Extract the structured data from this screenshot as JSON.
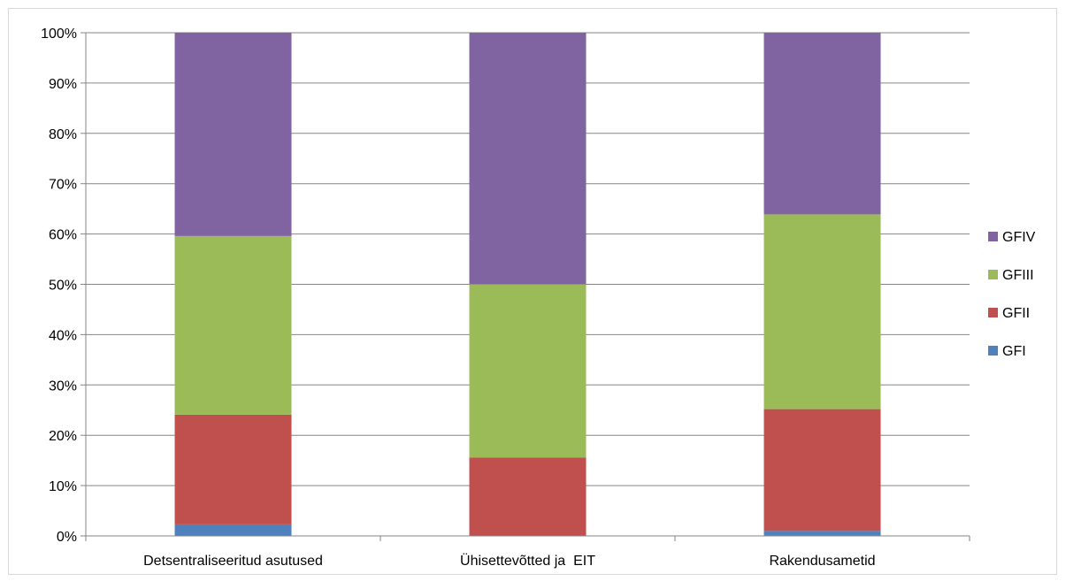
{
  "chart_data": {
    "type": "bar",
    "stacked": true,
    "percent": true,
    "categories": [
      "Detsentraliseeritud asutused",
      "Ühisettevõtted ja  EIT",
      "Rakendusametid"
    ],
    "series": [
      {
        "name": "GFI",
        "color": "#4f81bd",
        "values": [
          2.3,
          0,
          1.0
        ]
      },
      {
        "name": "GFII",
        "color": "#c0504d",
        "values": [
          21.8,
          15.6,
          24.2
        ]
      },
      {
        "name": "GFIII",
        "color": "#9bbb59",
        "values": [
          35.5,
          34.4,
          38.7
        ]
      },
      {
        "name": "GFIV",
        "color": "#8064a2",
        "values": [
          40.4,
          50.0,
          36.1
        ]
      }
    ],
    "ylim": [
      0,
      100
    ],
    "yticks": [
      0,
      10,
      20,
      30,
      40,
      50,
      60,
      70,
      80,
      90,
      100
    ],
    "ytick_labels": [
      "0%",
      "10%",
      "20%",
      "30%",
      "40%",
      "50%",
      "60%",
      "70%",
      "80%",
      "90%",
      "100%"
    ],
    "grid": true,
    "legend_position": "right",
    "legend_order": [
      "GFIV",
      "GFIII",
      "GFII",
      "GFI"
    ]
  }
}
